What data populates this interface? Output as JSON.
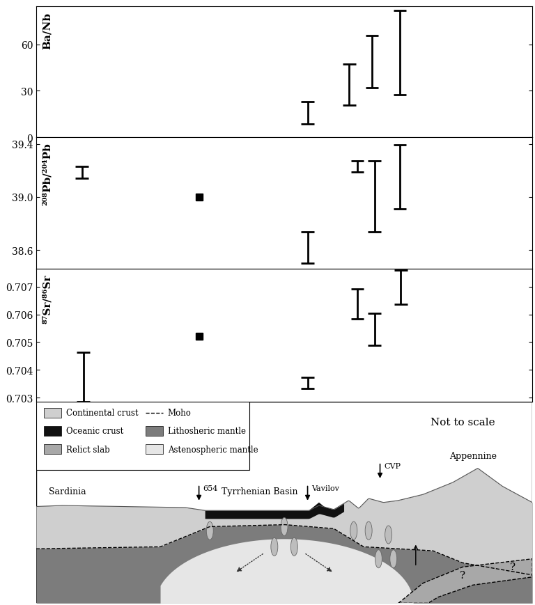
{
  "chart_data": [
    {
      "type": "range",
      "y_label": "Ba/Nb",
      "color": "#000000",
      "x": [
        54.7,
        63.1,
        67.7,
        73.3
      ],
      "low": [
        8.5,
        20.6,
        31.8,
        27.3
      ],
      "high": [
        22.8,
        47,
        65.4,
        82
      ],
      "xlim": [
        0,
        100
      ],
      "ylim": [
        0,
        84.5
      ],
      "yticks": [
        0,
        30,
        60
      ],
      "tick_labels": "y"
    },
    {
      "type": "range",
      "y_label": "²⁰⁸Pb/²⁰⁴Pb",
      "color": "#000000",
      "x": [
        9.2,
        32.8,
        54.7,
        64.7,
        68.2,
        73.3
      ],
      "low": [
        39.14,
        39.0,
        38.5,
        39.19,
        38.74,
        38.91
      ],
      "high": [
        39.23,
        39.0,
        38.74,
        39.27,
        39.27,
        39.39
      ],
      "xlim": [
        0,
        100
      ],
      "ylim": [
        38.46,
        39.45
      ],
      "yticks": [
        38.6,
        39.0,
        39.4
      ],
      "tick_labels": "y"
    },
    {
      "type": "range",
      "y_label": "⁸⁷Sr/⁸⁶Sr",
      "color": "#000000",
      "x": [
        9.5,
        32.8,
        54.7,
        64.7,
        68.2,
        73.5
      ],
      "low": [
        0.70285,
        0.7052,
        0.70333,
        0.70585,
        0.70488,
        0.70638
      ],
      "high": [
        0.70464,
        0.7052,
        0.70373,
        0.70693,
        0.70605,
        0.7076
      ],
      "xlim": [
        0,
        100
      ],
      "ylim": [
        0.70285,
        0.70765
      ],
      "yticks": [
        0.703,
        0.704,
        0.705,
        0.706,
        0.707
      ],
      "tick_labels": "y"
    }
  ],
  "diagram": {
    "legend": [
      {
        "name": "Continental crust",
        "color": "#cfcfcf"
      },
      {
        "name": "Oceanic crust",
        "color": "#111111"
      },
      {
        "name": "Relict slab",
        "color": "#a8a8a8"
      },
      {
        "name": "Moho",
        "line_style": "dashed",
        "color": "#000000"
      },
      {
        "name": "Lithosheric mantle",
        "color": "#7c7c7c"
      },
      {
        "name": "Astenospheric mantle",
        "color": "#e6e6e6"
      }
    ],
    "note": "Not to scale",
    "places": [
      "Sardinia",
      "Tyrrhenian Basin",
      "Appennine"
    ],
    "arrows": [
      "654",
      "Vavilov",
      "CVP"
    ],
    "unknowns": [
      "?",
      "?"
    ]
  }
}
